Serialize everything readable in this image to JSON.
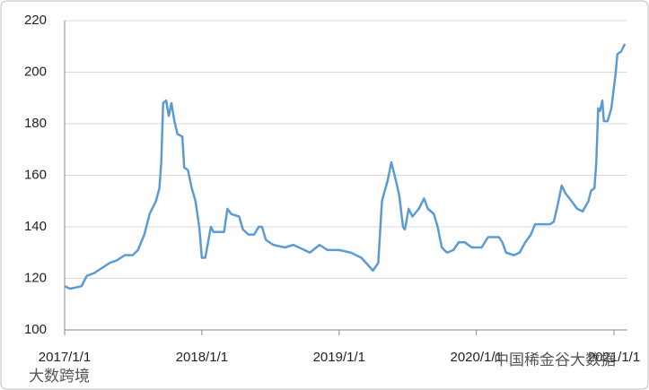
{
  "chart_data": {
    "type": "line",
    "x": [
      "2017/1/1",
      "2017/1/15",
      "2017/2/1",
      "2017/2/15",
      "2017/3/1",
      "2017/3/20",
      "2017/4/10",
      "2017/5/1",
      "2017/5/20",
      "2017/6/10",
      "2017/7/1",
      "2017/7/15",
      "2017/8/1",
      "2017/8/15",
      "2017/9/1",
      "2017/9/10",
      "2017/9/15",
      "2017/9/20",
      "2017/9/28",
      "2017/10/5",
      "2017/10/12",
      "2017/10/20",
      "2017/10/28",
      "2017/11/10",
      "2017/11/15",
      "2017/11/25",
      "2017/12/5",
      "2017/12/15",
      "2017/12/25",
      "2018/1/1",
      "2018/1/10",
      "2018/1/15",
      "2018/1/25",
      "2018/2/1",
      "2018/2/15",
      "2018/3/1",
      "2018/3/10",
      "2018/3/20",
      "2018/4/10",
      "2018/4/20",
      "2018/5/5",
      "2018/5/20",
      "2018/6/1",
      "2018/6/10",
      "2018/6/20",
      "2018/7/10",
      "2018/8/10",
      "2018/9/1",
      "2018/10/1",
      "2018/10/15",
      "2018/11/10",
      "2018/12/1",
      "2019/1/1",
      "2019/2/1",
      "2019/3/1",
      "2019/3/20",
      "2019/4/1",
      "2019/4/15",
      "2019/4/25",
      "2019/5/10",
      "2019/5/20",
      "2019/6/1",
      "2019/6/10",
      "2019/6/20",
      "2019/6/25",
      "2019/7/5",
      "2019/7/15",
      "2019/8/1",
      "2019/8/15",
      "2019/8/25",
      "2019/9/10",
      "2019/9/20",
      "2019/10/1",
      "2019/10/15",
      "2019/11/1",
      "2019/11/15",
      "2019/12/1",
      "2019/12/20",
      "2020/1/15",
      "2020/2/1",
      "2020/2/15",
      "2020/3/1",
      "2020/3/10",
      "2020/3/20",
      "2020/4/10",
      "2020/4/25",
      "2020/5/10",
      "2020/5/25",
      "2020/6/5",
      "2020/6/20",
      "2020/7/15",
      "2020/7/25",
      "2020/8/5",
      "2020/8/15",
      "2020/8/25",
      "2020/9/10",
      "2020/9/25",
      "2020/10/10",
      "2020/10/25",
      "2020/11/1",
      "2020/11/10",
      "2020/11/15",
      "2020/11/20",
      "2020/11/25",
      "2020/12/1",
      "2020/12/5",
      "2020/12/15",
      "2020/12/25",
      "2021/1/5",
      "2021/1/10",
      "2021/1/20",
      "2021/1/30"
    ],
    "series": [
      {
        "color": "#5b9bd5",
        "values": [
          117,
          116,
          116.5,
          117,
          121,
          122,
          124,
          126,
          127,
          129,
          129,
          131,
          137,
          145,
          150,
          155,
          165,
          188,
          189,
          183,
          188,
          181,
          176,
          175,
          163,
          162,
          155,
          150,
          140,
          128,
          128,
          132,
          140,
          138,
          138,
          138,
          147,
          145,
          144,
          139,
          137,
          137,
          140,
          140,
          135,
          133,
          132,
          133,
          131,
          130,
          133,
          131,
          131,
          130,
          128,
          125,
          123,
          126,
          150,
          158,
          165,
          158,
          152,
          140,
          139,
          147,
          144,
          147,
          151,
          147,
          145,
          140,
          132,
          130,
          131,
          134,
          134,
          132,
          132,
          136,
          136,
          136,
          134,
          130,
          129,
          130,
          134,
          137,
          141,
          141,
          141,
          142,
          149,
          156,
          153,
          150,
          147,
          146,
          150,
          154,
          155,
          165,
          186,
          185,
          189,
          181,
          181,
          186,
          199,
          207,
          208,
          211
        ]
      }
    ],
    "xlim": [
      "2017/1/1",
      "2021/2/5"
    ],
    "xticks": [
      "2017/1/1",
      "2018/1/1",
      "2019/1/1",
      "2020/1/1",
      "2021/1/1"
    ],
    "ylim": [
      100,
      220
    ],
    "yticks": [
      100,
      120,
      140,
      160,
      180,
      200,
      220
    ],
    "grid": true,
    "watermarks": [
      "大数跨境",
      "中国稀金谷大数据"
    ]
  }
}
